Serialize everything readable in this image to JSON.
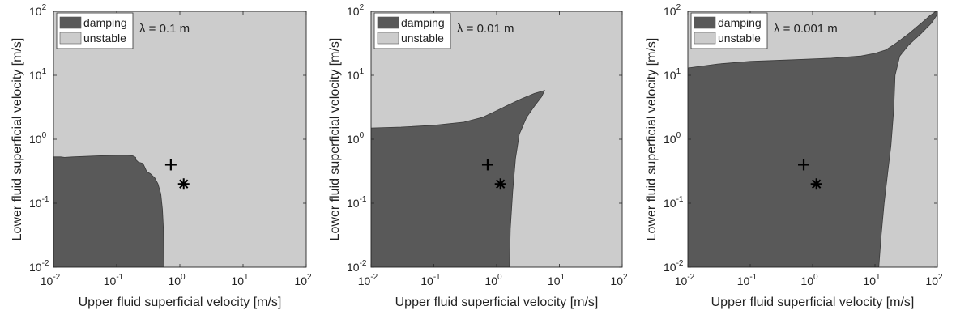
{
  "colors": {
    "damping": "#595959",
    "unstable": "#cccccc",
    "axis": "#262626",
    "marker": "#000000"
  },
  "chart_data": [
    {
      "type": "area",
      "scale": "log-log",
      "title": "",
      "annotation": "λ = 0.1 m",
      "xlabel": "Upper fluid superficial velocity [m/s]",
      "ylabel": "Lower fluid superficial velocity [m/s]",
      "xlim": [
        0.01,
        100
      ],
      "ylim": [
        0.01,
        100
      ],
      "xticks": [
        0.01,
        0.1,
        1,
        10,
        100
      ],
      "yticks": [
        0.01,
        0.1,
        1,
        10,
        100
      ],
      "grid": false,
      "legend": {
        "position": "top-left",
        "entries": [
          "damping",
          "unstable"
        ]
      },
      "background_region": "unstable",
      "damping_region_boundary": [
        [
          0.01,
          0.01
        ],
        [
          0.01,
          0.53
        ],
        [
          0.013,
          0.53
        ],
        [
          0.015,
          0.52
        ],
        [
          0.02,
          0.53
        ],
        [
          0.05,
          0.55
        ],
        [
          0.1,
          0.56
        ],
        [
          0.15,
          0.56
        ],
        [
          0.18,
          0.55
        ],
        [
          0.2,
          0.52
        ],
        [
          0.2,
          0.48
        ],
        [
          0.22,
          0.44
        ],
        [
          0.26,
          0.42
        ],
        [
          0.28,
          0.36
        ],
        [
          0.3,
          0.31
        ],
        [
          0.34,
          0.29
        ],
        [
          0.4,
          0.25
        ],
        [
          0.45,
          0.2
        ],
        [
          0.5,
          0.14
        ],
        [
          0.53,
          0.08
        ],
        [
          0.55,
          0.04
        ],
        [
          0.56,
          0.01
        ]
      ],
      "markers": [
        {
          "symbol": "plus",
          "x": 0.72,
          "y": 0.4
        },
        {
          "symbol": "asterisk",
          "x": 1.15,
          "y": 0.2
        }
      ]
    },
    {
      "type": "area",
      "scale": "log-log",
      "title": "",
      "annotation": "λ = 0.01 m",
      "xlabel": "Upper fluid superficial velocity [m/s]",
      "ylabel": "Lower fluid superficial velocity [m/s]",
      "xlim": [
        0.01,
        100
      ],
      "ylim": [
        0.01,
        100
      ],
      "xticks": [
        0.01,
        0.1,
        1,
        10,
        100
      ],
      "yticks": [
        0.01,
        0.1,
        1,
        10,
        100
      ],
      "grid": false,
      "legend": {
        "position": "top-left",
        "entries": [
          "damping",
          "unstable"
        ]
      },
      "background_region": "unstable",
      "damping_region_boundary": [
        [
          0.01,
          0.01
        ],
        [
          0.01,
          1.5
        ],
        [
          0.03,
          1.55
        ],
        [
          0.1,
          1.65
        ],
        [
          0.3,
          1.85
        ],
        [
          0.6,
          2.2
        ],
        [
          1.0,
          2.8
        ],
        [
          1.6,
          3.5
        ],
        [
          2.5,
          4.3
        ],
        [
          4.0,
          5.2
        ],
        [
          5.8,
          5.8
        ],
        [
          5.2,
          4.6
        ],
        [
          4.0,
          3.3
        ],
        [
          3.0,
          2.2
        ],
        [
          2.3,
          1.2
        ],
        [
          2.0,
          0.5
        ],
        [
          1.8,
          0.15
        ],
        [
          1.65,
          0.04
        ],
        [
          1.6,
          0.01
        ]
      ],
      "markers": [
        {
          "symbol": "plus",
          "x": 0.72,
          "y": 0.4
        },
        {
          "symbol": "asterisk",
          "x": 1.15,
          "y": 0.2
        }
      ]
    },
    {
      "type": "area",
      "scale": "log-log",
      "title": "",
      "annotation": "λ = 0.001 m",
      "xlabel": "Upper fluid superficial velocity [m/s]",
      "ylabel": "Lower fluid superficial velocity [m/s]",
      "xlim": [
        0.01,
        100
      ],
      "ylim": [
        0.01,
        100
      ],
      "xticks": [
        0.01,
        0.1,
        1,
        10,
        100
      ],
      "yticks": [
        0.01,
        0.1,
        1,
        10,
        100
      ],
      "grid": false,
      "legend": {
        "position": "top-left",
        "entries": [
          "damping",
          "unstable"
        ]
      },
      "background_region": "unstable",
      "damping_region_boundary": [
        [
          0.01,
          0.01
        ],
        [
          0.01,
          13.0
        ],
        [
          0.03,
          15.0
        ],
        [
          0.1,
          16.5
        ],
        [
          0.5,
          17.5
        ],
        [
          2,
          18.5
        ],
        [
          6,
          20
        ],
        [
          10,
          22
        ],
        [
          15,
          25
        ],
        [
          22,
          32
        ],
        [
          35,
          45
        ],
        [
          55,
          65
        ],
        [
          75,
          85
        ],
        [
          95,
          100
        ],
        [
          100,
          100
        ],
        [
          100,
          90
        ],
        [
          80,
          65
        ],
        [
          55,
          45
        ],
        [
          35,
          30
        ],
        [
          25,
          20
        ],
        [
          21,
          10
        ],
        [
          20,
          3
        ],
        [
          18,
          0.8
        ],
        [
          16,
          0.3
        ],
        [
          14,
          0.1
        ],
        [
          12.5,
          0.03
        ],
        [
          11.5,
          0.01
        ]
      ],
      "markers": [
        {
          "symbol": "plus",
          "x": 0.72,
          "y": 0.4
        },
        {
          "symbol": "asterisk",
          "x": 1.15,
          "y": 0.2
        }
      ]
    }
  ]
}
